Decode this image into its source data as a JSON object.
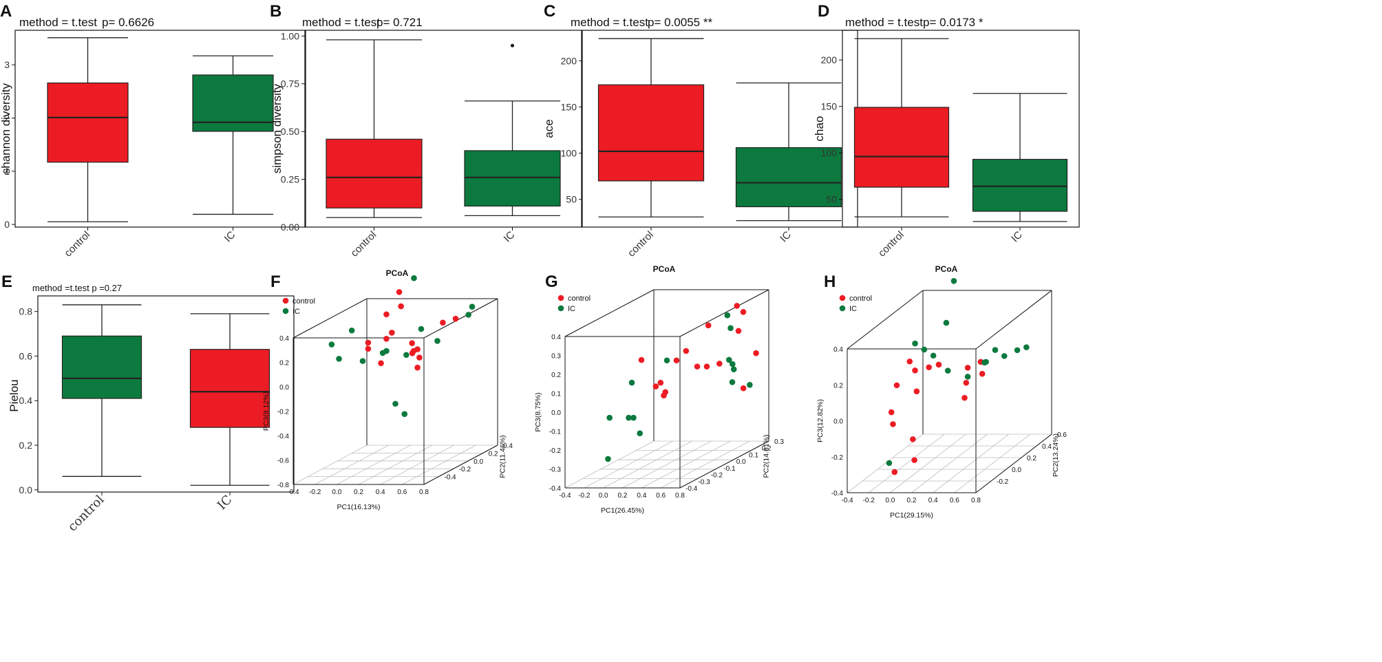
{
  "colors": {
    "red": "#ec1c24",
    "green": "#0c7a3e",
    "frame": "#111111",
    "grid": "#bdbdbd"
  },
  "chart_data": [
    {
      "id": "A",
      "type": "boxplot",
      "letter": "A",
      "annotation_method": "method = t.test",
      "annotation_p": "p= 0.6626",
      "ylabel": "shannon diversity",
      "ylim": [
        -0.05,
        3.65
      ],
      "yticks": [
        0,
        1,
        2,
        3
      ],
      "ytick_labels": [
        "0",
        "1",
        "2",
        "3"
      ],
      "categories": [
        "control",
        "IC"
      ],
      "boxes": [
        {
          "name": "control",
          "color": "red",
          "min": 0.05,
          "q1": 1.17,
          "median": 2.01,
          "q3": 2.66,
          "max": 3.51,
          "outliers": []
        },
        {
          "name": "IC",
          "color": "green",
          "min": 0.19,
          "q1": 1.75,
          "median": 1.92,
          "q3": 2.81,
          "max": 3.17,
          "outliers": []
        }
      ]
    },
    {
      "id": "B",
      "type": "boxplot",
      "letter": "B",
      "annotation_method": "method = t.test",
      "annotation_p": "p= 0.721",
      "ylabel": "simpson diversity",
      "ylim": [
        0,
        1.03
      ],
      "yticks": [
        0,
        0.25,
        0.5,
        0.75,
        1.0
      ],
      "ytick_labels": [
        "0.00",
        "0.25",
        "0.50",
        "0.75",
        "1.00"
      ],
      "categories": [
        "control",
        "IC"
      ],
      "boxes": [
        {
          "name": "control",
          "color": "red",
          "min": 0.05,
          "q1": 0.1,
          "median": 0.26,
          "q3": 0.46,
          "max": 0.98,
          "outliers": []
        },
        {
          "name": "IC",
          "color": "green",
          "min": 0.06,
          "q1": 0.11,
          "median": 0.26,
          "q3": 0.4,
          "max": 0.66,
          "outliers": [
            0.95
          ]
        }
      ]
    },
    {
      "id": "C",
      "type": "boxplot",
      "letter": "C",
      "annotation_method": "method = t.test",
      "annotation_p": "p= 0.0055 **",
      "ylabel": "ace",
      "ylim": [
        20,
        233
      ],
      "yticks": [
        50,
        100,
        150,
        200
      ],
      "ytick_labels": [
        "50",
        "100",
        "150",
        "200"
      ],
      "categories": [
        "control",
        "IC"
      ],
      "boxes": [
        {
          "name": "control",
          "color": "red",
          "min": 31,
          "q1": 70,
          "median": 102,
          "q3": 174,
          "max": 224,
          "outliers": []
        },
        {
          "name": "IC",
          "color": "green",
          "min": 27,
          "q1": 42,
          "median": 68,
          "q3": 106,
          "max": 176,
          "outliers": []
        }
      ]
    },
    {
      "id": "D",
      "type": "boxplot",
      "letter": "D",
      "annotation_method": "method = t.test",
      "annotation_p": "p= 0.0173 *",
      "ylabel": "chao",
      "ylim": [
        20,
        232
      ],
      "yticks": [
        50,
        100,
        150,
        200
      ],
      "ytick_labels": [
        "50",
        "100",
        "150",
        "200"
      ],
      "categories": [
        "control",
        "IC"
      ],
      "boxes": [
        {
          "name": "control",
          "color": "red",
          "min": 31,
          "q1": 63,
          "median": 96,
          "q3": 149,
          "max": 223,
          "outliers": []
        },
        {
          "name": "IC",
          "color": "green",
          "min": 26,
          "q1": 37,
          "median": 64,
          "q3": 93,
          "max": 164,
          "outliers": []
        }
      ]
    },
    {
      "id": "E",
      "type": "boxplot",
      "letter": "E",
      "annotation_method": "method =t.test p =0.27",
      "annotation_p": "",
      "ylabel": "Pielou",
      "ylim": [
        -0.01,
        0.87
      ],
      "yticks": [
        0,
        0.2,
        0.4,
        0.6,
        0.8
      ],
      "ytick_labels": [
        "0.0",
        "0.2",
        "0.4",
        "0.6",
        "0.8"
      ],
      "categories": [
        "control",
        "IC"
      ],
      "boxes": [
        {
          "name": "control",
          "color": "green",
          "min": 0.06,
          "q1": 0.41,
          "median": 0.5,
          "q3": 0.69,
          "max": 0.83,
          "outliers": []
        },
        {
          "name": "IC",
          "color": "red",
          "min": 0.02,
          "q1": 0.28,
          "median": 0.44,
          "q3": 0.63,
          "max": 0.79,
          "outliers": []
        }
      ]
    },
    {
      "id": "F",
      "type": "scatter3d",
      "letter": "F",
      "title": "PCoA",
      "legend": [
        {
          "label": "control",
          "color": "red"
        },
        {
          "label": "IC",
          "color": "green"
        }
      ],
      "xlabel": "PC1(16.13%)",
      "ylabel": "PC2(11.46%)",
      "zlabel": "PC3(8.12%)",
      "xlim": [
        -0.4,
        0.8
      ],
      "ylim": [
        -0.6,
        0.4
      ],
      "zlim": [
        -0.8,
        0.4
      ],
      "xticks": [
        -0.4,
        -0.2,
        0.0,
        0.2,
        0.4,
        0.6,
        0.8
      ],
      "xtick_labels": [
        "-0.4",
        "-0.2",
        "0.0",
        "0.2",
        "0.4",
        "0.6",
        "0.8"
      ],
      "yticks": [
        -0.4,
        -0.2,
        0.0,
        0.2,
        0.4
      ],
      "ytick_labels": [
        "-0.4",
        "-0.2",
        "0.0",
        "0.2",
        "0.4"
      ],
      "zticks": [
        -0.8,
        -0.6,
        -0.4,
        -0.2,
        0.0,
        0.2,
        0.4
      ],
      "ztick_labels": [
        "-0.8",
        "-0.6",
        "-0.4",
        "-0.2",
        "0.0",
        "0.2",
        "0.4"
      ],
      "points": {
        "control": [
          [
            -0.05,
            -0.1,
            0.15
          ],
          [
            0.05,
            0.0,
            0.4
          ],
          [
            0.15,
            0.05,
            0.45
          ],
          [
            0.1,
            0.1,
            0.55
          ],
          [
            0.2,
            0.2,
            0.05
          ],
          [
            0.15,
            0.2,
            0.1
          ],
          [
            0.05,
            0.0,
            0.2
          ],
          [
            0.0,
            0.0,
            0.0
          ],
          [
            0.22,
            0.1,
            0.05
          ],
          [
            0.3,
            0.0,
            0.1
          ],
          [
            0.15,
            0.3,
            -0.05
          ],
          [
            0.2,
            0.2,
            -0.1
          ],
          [
            0.5,
            0.1,
            0.3
          ],
          [
            0.55,
            0.2,
            0.3
          ],
          [
            -0.05,
            -0.1,
            0.2
          ],
          [
            0.1,
            0.0,
            0.25
          ]
        ],
        "IC": [
          [
            -0.2,
            -0.1,
            0.3
          ],
          [
            -0.25,
            -0.2,
            0.1
          ],
          [
            -0.1,
            -0.1,
            0.05
          ],
          [
            0.1,
            0.3,
            0.6
          ],
          [
            0.2,
            -0.1,
            -0.3
          ],
          [
            0.25,
            -0.05,
            -0.4
          ],
          [
            0.45,
            0.1,
            0.15
          ],
          [
            0.6,
            0.3,
            0.3
          ],
          [
            0.6,
            0.35,
            0.35
          ],
          [
            0.3,
            -0.1,
            0.1
          ],
          [
            0.05,
            0.0,
            0.1
          ],
          [
            0.05,
            -0.05,
            0.1
          ],
          [
            -0.25,
            -0.3,
            0.25
          ],
          [
            0.2,
            0.25,
            0.2
          ]
        ]
      }
    },
    {
      "id": "G",
      "type": "scatter3d",
      "letter": "G",
      "title": "PCoA",
      "legend": [
        {
          "label": "control",
          "color": "red"
        },
        {
          "label": "IC",
          "color": "green"
        }
      ],
      "xlabel": "PC1(26.45%)",
      "ylabel": "PC2(14.61%)",
      "zlabel": "PC3(8.75%)",
      "xlim": [
        -0.4,
        0.8
      ],
      "ylim": [
        -0.4,
        0.3
      ],
      "zlim": [
        -0.4,
        0.4
      ],
      "xticks": [
        -0.4,
        -0.2,
        0.0,
        0.2,
        0.4,
        0.6,
        0.8
      ],
      "xtick_labels": [
        "-0.4",
        "-0.2",
        "0.0",
        "0.2",
        "0.4",
        "0.6",
        "0.8"
      ],
      "yticks": [
        -0.4,
        -0.3,
        -0.2,
        -0.1,
        0.0,
        0.1,
        0.2,
        0.3
      ],
      "ytick_labels": [
        "-0.4",
        "-0.3",
        "-0.2",
        "-0.1",
        "0.0",
        "0.1",
        "0.2",
        "0.3"
      ],
      "zticks": [
        -0.4,
        -0.3,
        -0.2,
        -0.1,
        0.0,
        0.1,
        0.2,
        0.3,
        0.4
      ],
      "ztick_labels": [
        "-0.4",
        "-0.3",
        "-0.2",
        "-0.1",
        "0.0",
        "0.1",
        "0.2",
        "0.3",
        "0.4"
      ],
      "points": {
        "control": [
          [
            0.0,
            -0.1,
            0.17
          ],
          [
            0.3,
            -0.05,
            0.15
          ],
          [
            0.4,
            -0.05,
            0.2
          ],
          [
            0.45,
            0.0,
            0.1
          ],
          [
            0.2,
            -0.1,
            0.05
          ],
          [
            0.25,
            -0.1,
            0.0
          ],
          [
            0.3,
            -0.15,
            0.0
          ],
          [
            0.55,
            0.0,
            0.1
          ],
          [
            0.5,
            0.05,
            0.3
          ],
          [
            0.6,
            0.2,
            0.35
          ],
          [
            0.6,
            0.25,
            0.3
          ],
          [
            0.55,
            0.25,
            0.2
          ],
          [
            0.8,
            0.2,
            0.1
          ],
          [
            0.8,
            0.1,
            -0.05
          ],
          [
            0.55,
            0.1,
            0.08
          ],
          [
            0.15,
            -0.1,
            0.03
          ]
        ],
        "IC": [
          [
            -0.2,
            -0.2,
            -0.1
          ],
          [
            -0.1,
            -0.1,
            0.05
          ],
          [
            0.0,
            -0.2,
            -0.1
          ],
          [
            0.05,
            -0.15,
            -0.2
          ],
          [
            0.2,
            -0.05,
            0.15
          ],
          [
            0.5,
            0.2,
            0.3
          ],
          [
            0.6,
            0.15,
            0.25
          ],
          [
            0.65,
            0.1,
            0.1
          ],
          [
            0.7,
            0.1,
            0.05
          ],
          [
            0.75,
            0.05,
            0.0
          ],
          [
            0.62,
            0.15,
            0.06
          ],
          [
            0.8,
            0.15,
            -0.05
          ],
          [
            -0.15,
            -0.25,
            -0.3
          ],
          [
            0.05,
            -0.2,
            -0.1
          ]
        ]
      }
    },
    {
      "id": "H",
      "type": "scatter3d",
      "letter": "H",
      "title": "PCoA",
      "legend": [
        {
          "label": "control",
          "color": "red"
        },
        {
          "label": "IC",
          "color": "green"
        }
      ],
      "xlabel": "PC1(29.15%)",
      "ylabel": "PC2(13.24%)",
      "zlabel": "PC3(12.82%)",
      "xlim": [
        -0.4,
        0.8
      ],
      "ylim": [
        -0.4,
        0.6
      ],
      "zlim": [
        -0.4,
        0.4
      ],
      "xticks": [
        -0.4,
        -0.2,
        0.0,
        0.2,
        0.4,
        0.6,
        0.8
      ],
      "xtick_labels": [
        "-0.4",
        "-0.2",
        "0.0",
        "0.2",
        "0.4",
        "0.6",
        "0.8"
      ],
      "yticks": [
        -0.2,
        0.0,
        0.2,
        0.4,
        0.6
      ],
      "ytick_labels": [
        "-0.2",
        "0.0",
        "0.2",
        "0.4",
        "0.6"
      ],
      "zticks": [
        -0.4,
        -0.2,
        0.0,
        0.2,
        0.4
      ],
      "ztick_labels": [
        "-0.4",
        "-0.2",
        "0.0",
        "0.2",
        "0.4"
      ],
      "points": {
        "control": [
          [
            -0.1,
            0.0,
            0.2
          ],
          [
            -0.05,
            0.0,
            0.15
          ],
          [
            -0.15,
            -0.1,
            0.1
          ],
          [
            0.0,
            -0.05,
            0.05
          ],
          [
            -0.2,
            -0.1,
            -0.05
          ],
          [
            -0.15,
            -0.15,
            -0.1
          ],
          [
            0.0,
            -0.1,
            -0.2
          ],
          [
            0.1,
            0.1,
            0.15
          ],
          [
            0.3,
            0.2,
            0.1
          ],
          [
            0.4,
            0.25,
            0.05
          ],
          [
            0.35,
            0.3,
            0.1
          ],
          [
            0.2,
            0.3,
            -0.1
          ],
          [
            -0.1,
            -0.2,
            -0.35
          ],
          [
            0.05,
            -0.15,
            -0.3
          ],
          [
            0.25,
            0.25,
            0.0
          ],
          [
            0.15,
            -0.1,
            0.2
          ]
        ],
        "IC": [
          [
            -0.05,
            0.0,
            0.3
          ],
          [
            0.0,
            0.05,
            0.25
          ],
          [
            0.05,
            0.1,
            0.2
          ],
          [
            0.1,
            0.2,
            0.35
          ],
          [
            0.1,
            0.3,
            0.55
          ],
          [
            0.3,
            0.2,
            0.05
          ],
          [
            0.4,
            0.3,
            0.1
          ],
          [
            0.5,
            0.4,
            0.1
          ],
          [
            0.55,
            0.5,
            0.1
          ],
          [
            0.6,
            0.55,
            0.1
          ],
          [
            0.45,
            0.35,
            0.15
          ],
          [
            0.35,
            0.35,
            0.08
          ],
          [
            0.15,
            0.15,
            0.1
          ],
          [
            -0.15,
            -0.2,
            -0.3
          ]
        ]
      }
    }
  ]
}
